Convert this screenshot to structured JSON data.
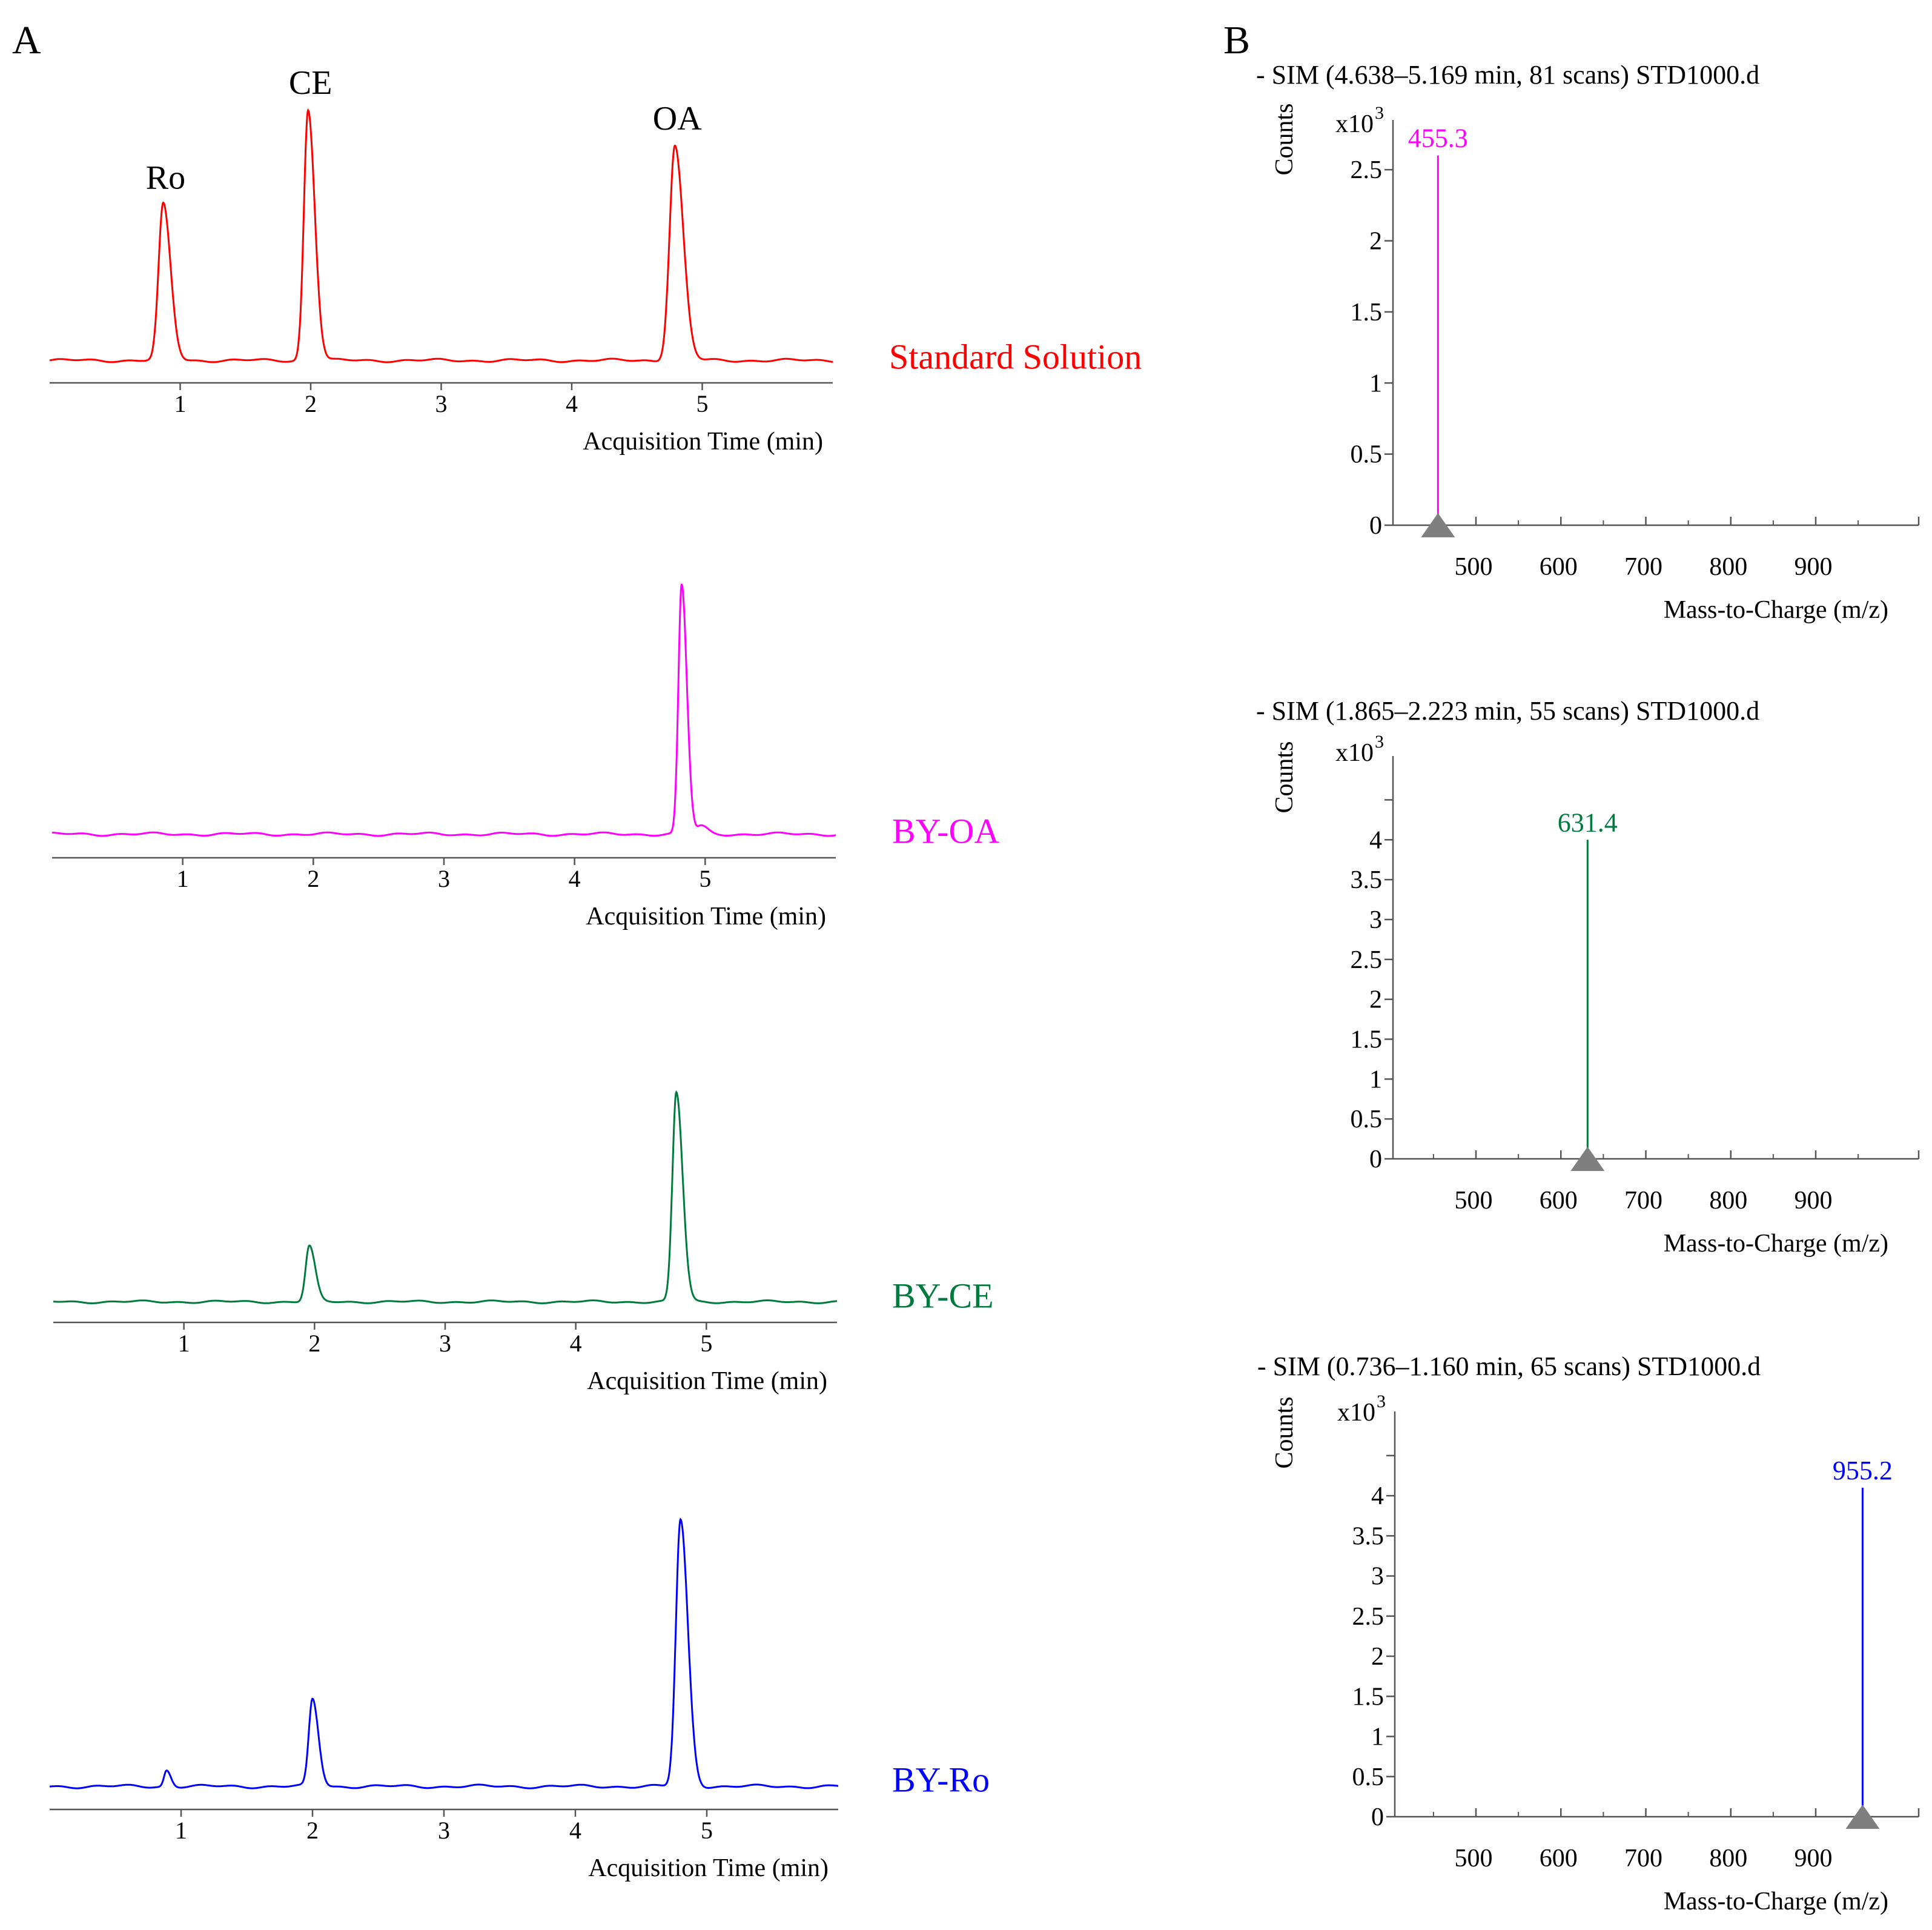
{
  "panel_letters": {
    "a": "A",
    "b": "B"
  },
  "chart_data": [
    {
      "type": "line",
      "title": "Standard Solution",
      "color": "#ff0000",
      "xlabel": "Acquisition Time (min)",
      "xlim": [
        0,
        6.0
      ],
      "xticks": [
        1,
        2,
        3,
        4,
        5
      ],
      "baseline": 0.02,
      "peaks": [
        {
          "name": "Ro",
          "rt": 0.87,
          "height": 0.63,
          "width": 0.035
        },
        {
          "name": "CE",
          "rt": 1.98,
          "height": 1.0,
          "width": 0.032
        },
        {
          "name": "OA",
          "rt": 4.79,
          "height": 0.86,
          "width": 0.04
        }
      ],
      "ylim": [
        0,
        1.05
      ]
    },
    {
      "type": "line",
      "title": "BY-OA",
      "color": "#ff00ff",
      "xlabel": "Acquisition Time (min)",
      "xlim": [
        0,
        6.0
      ],
      "xticks": [
        1,
        2,
        3,
        4,
        5
      ],
      "baseline": 0.02,
      "peaks": [
        {
          "name": "",
          "rt": 4.82,
          "height": 1.0,
          "width": 0.025
        },
        {
          "name": "",
          "rt": 4.97,
          "height": 0.05,
          "width": 0.03
        }
      ],
      "ylim": [
        0,
        1.05
      ]
    },
    {
      "type": "line",
      "title": "BY-CE",
      "color": "#007a3d",
      "xlabel": "Acquisition Time (min)",
      "xlim": [
        0,
        6.0
      ],
      "xticks": [
        1,
        2,
        3,
        4,
        5
      ],
      "baseline": 0.02,
      "peaks": [
        {
          "name": "",
          "rt": 1.96,
          "height": 0.28,
          "width": 0.028
        },
        {
          "name": "",
          "rt": 4.77,
          "height": 1.0,
          "width": 0.03
        }
      ],
      "ylim": [
        0,
        1.05
      ]
    },
    {
      "type": "line",
      "title": "BY-Ro",
      "color": "#0000ff",
      "xlabel": "Acquisition Time (min)",
      "xlim": [
        0,
        6.0
      ],
      "xticks": [
        1,
        2,
        3,
        4,
        5
      ],
      "baseline": 0.02,
      "peaks": [
        {
          "name": "",
          "rt": 0.89,
          "height": 0.08,
          "width": 0.02
        },
        {
          "name": "",
          "rt": 2.0,
          "height": 0.34,
          "width": 0.028
        },
        {
          "name": "",
          "rt": 4.8,
          "height": 1.0,
          "width": 0.035
        }
      ],
      "ylim": [
        0,
        1.05
      ]
    },
    {
      "type": "bar",
      "title": "- SIM (4.638–5.169 min, 81 scans) STD1000.d",
      "ylabel": "Counts",
      "yunit": "x10",
      "yexp": "3",
      "xlabel": "Mass-to-Charge (m/z)",
      "color": "#ff00ff",
      "xlim": [
        410,
        1010
      ],
      "xticks": [
        500,
        600,
        700,
        800,
        900
      ],
      "ylim": [
        0,
        2.85
      ],
      "yticks": [
        0,
        0.5,
        1,
        1.5,
        2,
        2.5
      ],
      "ytick_labels": [
        "0",
        "0.5",
        "1",
        "1.5",
        "2",
        "2.5"
      ],
      "peak_mz": 455.3,
      "peak_value": 2.6,
      "peak_label": "455.3"
    },
    {
      "type": "bar",
      "title": "- SIM (1.865–2.223 min, 55 scans) STD1000.d",
      "ylabel": "Counts",
      "yunit": "x10",
      "yexp": "3",
      "xlabel": "Mass-to-Charge (m/z)",
      "color": "#007a3d",
      "xlim": [
        410,
        1010
      ],
      "xticks": [
        500,
        600,
        700,
        800,
        900
      ],
      "ylim": [
        0,
        5.05
      ],
      "yticks": [
        0,
        0.5,
        1,
        1.5,
        2,
        2.5,
        3,
        3.5,
        4
      ],
      "ytick_labels": [
        "0",
        "0.5",
        "1",
        "1.5",
        "2",
        "2.5",
        "3",
        "3.5",
        "4"
      ],
      "peak_mz": 631.4,
      "peak_value": 4.0,
      "peak_label": "631.4"
    },
    {
      "type": "bar",
      "title": "- SIM (0.736–1.160 min, 65 scans) STD1000.d",
      "ylabel": "Counts",
      "yunit": "x10",
      "yexp": "3",
      "xlabel": "Mass-to-Charge (m/z)",
      "color": "#0000ff",
      "xlim": [
        410,
        1010
      ],
      "xticks": [
        500,
        600,
        700,
        800,
        900
      ],
      "ylim": [
        0,
        5.05
      ],
      "yticks": [
        0,
        0.5,
        1,
        1.5,
        2,
        2.5,
        3,
        3.5,
        4
      ],
      "ytick_labels": [
        "0",
        "0.5",
        "1",
        "1.5",
        "2",
        "2.5",
        "3",
        "3.5",
        "4"
      ],
      "peak_mz": 955.2,
      "peak_value": 4.1,
      "peak_label": "955.2"
    }
  ]
}
